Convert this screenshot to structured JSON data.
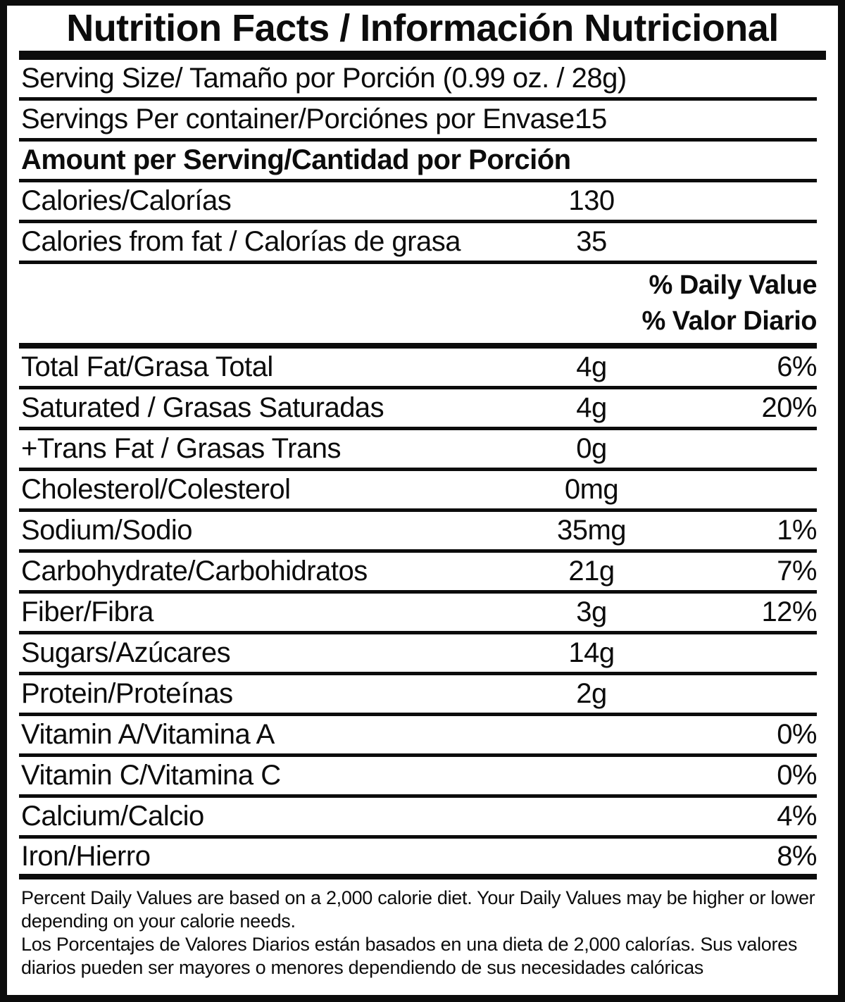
{
  "label": {
    "title": "Nutrition Facts / Información Nutricional",
    "serving_size": "Serving Size/ Tamaño por Porción  (0.99 oz. / 28g)",
    "servings_per_container": {
      "label": "Servings Per container/Porciónes por Envase:",
      "value": "15"
    },
    "amount_header": "Amount per Serving/Cantidad por Porción",
    "calories": {
      "label": "Calories/Calorías",
      "value": "130"
    },
    "calories_from_fat": {
      "label": "Calories from fat / Calorías de grasa",
      "value": "35"
    },
    "daily_value_header": {
      "en": "% Daily Value",
      "es": "% Valor Diario"
    },
    "nutrients": [
      {
        "label": "Total Fat/Grasa Total",
        "amount": "4g",
        "dv": "6%"
      },
      {
        "label": "Saturated / Grasas Saturadas",
        "amount": "4g",
        "dv": "20%"
      },
      {
        "label": "+Trans Fat / Grasas Trans",
        "amount": "0g",
        "dv": ""
      },
      {
        "label": "Cholesterol/Colesterol",
        "amount": "0mg",
        "dv": ""
      },
      {
        "label": "Sodium/Sodio",
        "amount": "35mg",
        "dv": "1%"
      },
      {
        "label": "Carbohydrate/Carbohidratos",
        "amount": "21g",
        "dv": "7%"
      },
      {
        "label": "Fiber/Fibra",
        "amount": "3g",
        "dv": "12%"
      },
      {
        "label": "Sugars/Azúcares",
        "amount": "14g",
        "dv": ""
      },
      {
        "label": "Protein/Proteínas",
        "amount": "2g",
        "dv": ""
      },
      {
        "label": "Vitamin A/Vitamina A",
        "amount": "",
        "dv": "0%"
      },
      {
        "label": "Vitamin C/Vitamina C",
        "amount": "",
        "dv": "0%"
      },
      {
        "label": "Calcium/Calcio",
        "amount": "",
        "dv": "4%"
      },
      {
        "label": "Iron/Hierro",
        "amount": "",
        "dv": "8%"
      }
    ],
    "footnote_en": "Percent Daily Values are based on a 2,000 calorie diet. Your Daily Values may be higher or lower depending on your calorie needs.",
    "footnote_es": "Los Porcentajes de Valores Diarios están basados en una dieta de 2,000 calorías. Sus valores diarios pueden ser mayores o menores dependiendo de sus necesidades calóricas"
  }
}
